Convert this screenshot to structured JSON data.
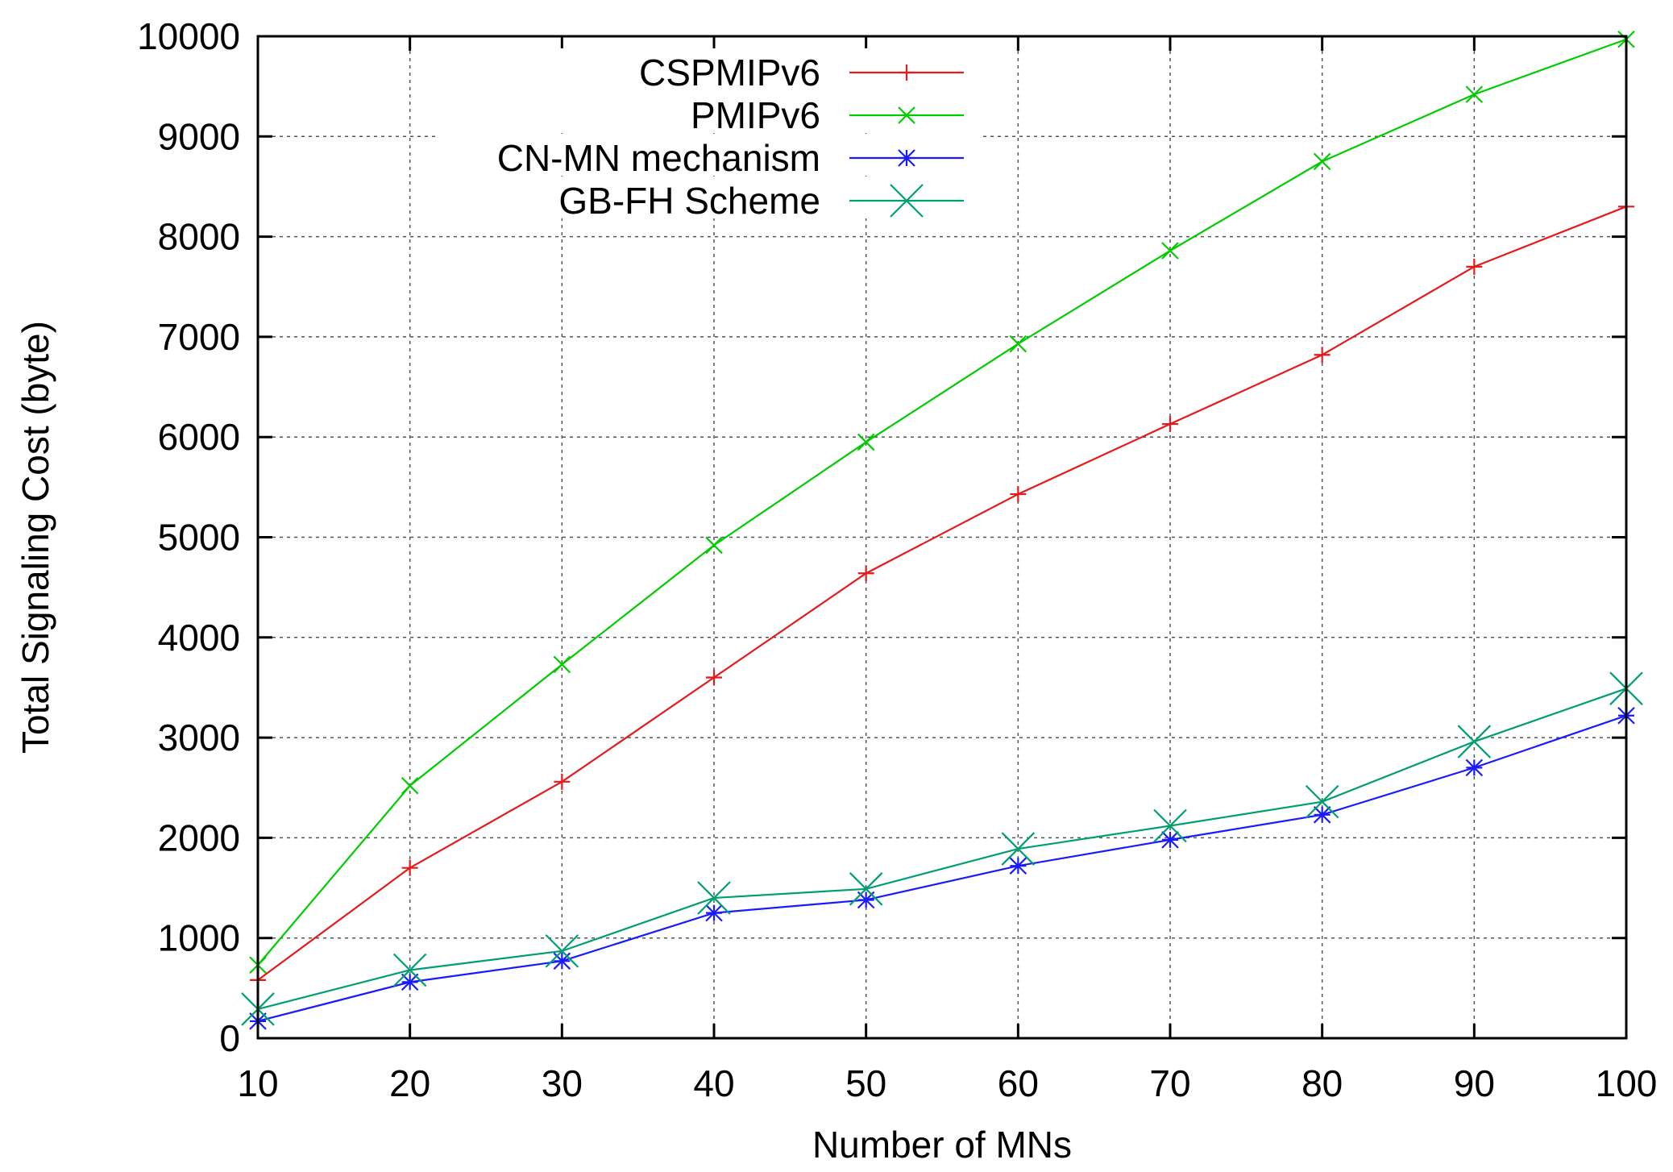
{
  "chart_data": {
    "type": "line",
    "title": "",
    "xlabel": "Number of MNs",
    "ylabel": "Total Signaling Cost (byte)",
    "x": [
      10,
      20,
      30,
      40,
      50,
      60,
      70,
      80,
      90,
      100
    ],
    "xlim": [
      10,
      100
    ],
    "ylim": [
      0,
      10000
    ],
    "xticks": [
      "10",
      "20",
      "30",
      "40",
      "50",
      "60",
      "70",
      "80",
      "90",
      "100"
    ],
    "yticks": [
      "0",
      "1000",
      "2000",
      "3000",
      "4000",
      "5000",
      "6000",
      "7000",
      "8000",
      "9000",
      "10000"
    ],
    "grid": true,
    "legend_position": "top-left",
    "series": [
      {
        "name": "CSPMIPv6",
        "color": "#e41a1c",
        "marker": "plus",
        "values": [
          580,
          1700,
          2560,
          3600,
          4640,
          5430,
          6130,
          6820,
          7700,
          8300
        ]
      },
      {
        "name": "PMIPv6",
        "color": "#00cc00",
        "marker": "cross",
        "values": [
          730,
          2520,
          3730,
          4920,
          5950,
          6930,
          7860,
          8750,
          9420,
          9970
        ]
      },
      {
        "name": "CN-MN mechanism",
        "color": "#1a1aff",
        "marker": "star",
        "values": [
          170,
          560,
          770,
          1250,
          1380,
          1720,
          1980,
          2230,
          2700,
          3220
        ]
      },
      {
        "name": "GB-FH Scheme",
        "color": "#009e73",
        "marker": "big-cross",
        "values": [
          290,
          680,
          870,
          1400,
          1490,
          1890,
          2120,
          2360,
          2960,
          3490
        ]
      }
    ]
  }
}
